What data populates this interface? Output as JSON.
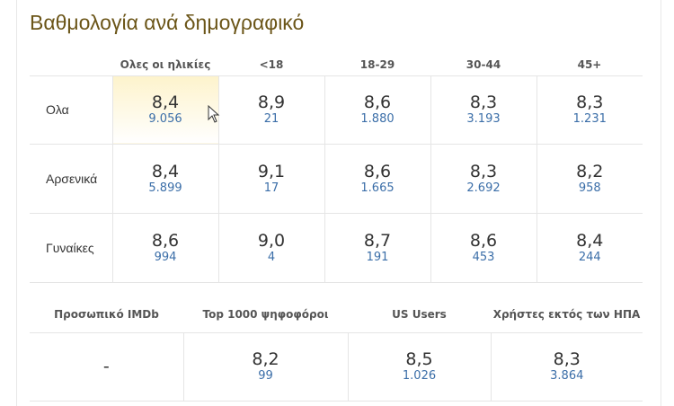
{
  "title": "Βαθμολογία ανά δημογραφικό",
  "table": {
    "headers": [
      "Ολες οι ηλικίες",
      "<18",
      "18-29",
      "30-44",
      "45+"
    ],
    "rows": [
      {
        "label": "Ολα",
        "cells": [
          {
            "rating": "8,4",
            "votes": "9.056"
          },
          {
            "rating": "8,9",
            "votes": "21"
          },
          {
            "rating": "8,6",
            "votes": "1.880"
          },
          {
            "rating": "8,3",
            "votes": "3.193"
          },
          {
            "rating": "8,3",
            "votes": "1.231"
          }
        ]
      },
      {
        "label": "Αρσενικά",
        "cells": [
          {
            "rating": "8,4",
            "votes": "5.899"
          },
          {
            "rating": "9,1",
            "votes": "17"
          },
          {
            "rating": "8,6",
            "votes": "1.665"
          },
          {
            "rating": "8,3",
            "votes": "2.692"
          },
          {
            "rating": "8,2",
            "votes": "958"
          }
        ]
      },
      {
        "label": "Γυναίκες",
        "cells": [
          {
            "rating": "8,6",
            "votes": "994"
          },
          {
            "rating": "9,0",
            "votes": "4"
          },
          {
            "rating": "8,7",
            "votes": "191"
          },
          {
            "rating": "8,6",
            "votes": "453"
          },
          {
            "rating": "8,4",
            "votes": "244"
          }
        ]
      }
    ]
  },
  "table2": {
    "headers": [
      "Προσωπικό IMDb",
      "Top 1000 ψηφοφόροι",
      "US Users",
      "Χρήστες εκτός των ΗΠΑ"
    ],
    "cells": [
      {
        "rating": "-"
      },
      {
        "rating": "8,2",
        "votes": "99"
      },
      {
        "rating": "8,5",
        "votes": "1.026"
      },
      {
        "rating": "8,3",
        "votes": "3.864"
      }
    ]
  }
}
